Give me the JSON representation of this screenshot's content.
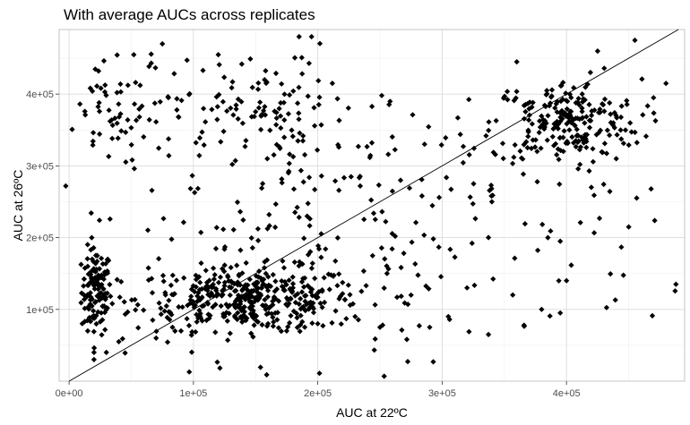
{
  "chart_data": {
    "type": "scatter",
    "title": "With average AUCs across replicates",
    "xlabel": "AUC at 22ºC",
    "ylabel": "AUC at 26ºC",
    "xlim": [
      -8000,
      495000
    ],
    "ylim": [
      0,
      490000
    ],
    "x_ticks": [
      0,
      100000,
      200000,
      300000,
      400000
    ],
    "x_tick_labels": [
      "0e+00",
      "1e+05",
      "2e+05",
      "3e+05",
      "4e+05"
    ],
    "y_ticks": [
      100000,
      200000,
      300000,
      400000
    ],
    "y_tick_labels": [
      "1e+05",
      "2e+05",
      "3e+05",
      "4e+05"
    ],
    "grid": true,
    "reference_line": {
      "slope": 1,
      "intercept": 0
    },
    "clusters": [
      {
        "n": 120,
        "x_mean": 22000,
        "x_sd": 6000,
        "y_mean": 125000,
        "y_sd": 30000
      },
      {
        "n": 420,
        "x_mean": 145000,
        "x_sd": 45000,
        "y_mean": 115000,
        "y_sd": 22000
      },
      {
        "n": 220,
        "x_mean": 400000,
        "x_sd": 30000,
        "y_mean": 360000,
        "y_sd": 30000
      },
      {
        "n": 90,
        "x_mean": 145000,
        "x_sd": 30000,
        "y_mean": 380000,
        "y_sd": 35000
      },
      {
        "n": 60,
        "x_mean": 45000,
        "x_sd": 25000,
        "y_mean": 370000,
        "y_sd": 40000
      },
      {
        "n": 280,
        "x_mean": 230000,
        "x_sd": 120000,
        "y_mean": 230000,
        "y_sd": 100000
      }
    ],
    "points": [
      [
        20000,
        30000
      ],
      [
        20000,
        40000
      ],
      [
        15000,
        70000
      ],
      [
        15000,
        160000
      ],
      [
        30000,
        40000
      ],
      [
        40000,
        55000
      ],
      [
        455000,
        475000
      ],
      [
        470000,
        395000
      ],
      [
        480000,
        415000
      ],
      [
        450000,
        215000
      ],
      [
        420000,
        270000
      ],
      [
        440000,
        310000
      ],
      [
        395000,
        95000
      ],
      [
        380000,
        100000
      ],
      [
        400000,
        140000
      ],
      [
        395000,
        195000
      ],
      [
        385000,
        200000
      ],
      [
        290000,
        75000
      ],
      [
        305000,
        90000
      ],
      [
        195000,
        480000
      ],
      [
        185000,
        480000
      ],
      [
        120000,
        455000
      ],
      [
        75000,
        470000
      ],
      [
        52000,
        455000
      ],
      [
        250000,
        75000
      ],
      [
        175000,
        70000
      ],
      [
        200000,
        80000
      ],
      [
        275000,
        120000
      ],
      [
        360000,
        445000
      ],
      [
        425000,
        460000
      ],
      [
        340000,
        250000
      ],
      [
        320000,
        130000
      ],
      [
        230000,
        90000
      ],
      [
        160000,
        80000
      ],
      [
        90000,
        70000
      ],
      [
        70000,
        60000
      ]
    ]
  }
}
